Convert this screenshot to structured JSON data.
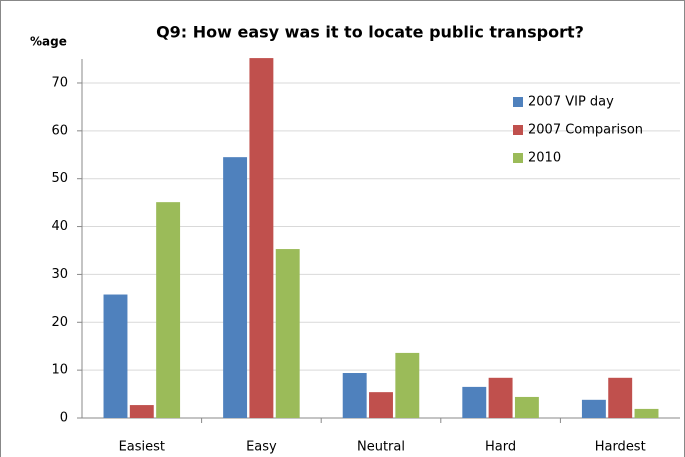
{
  "chart_data": {
    "type": "bar",
    "title": "Q9: How easy was it to locate public transport?",
    "y_label": "%age",
    "categories": [
      "Easiest",
      "Easy",
      "Neutral",
      "Hard",
      "Hardest"
    ],
    "series": [
      {
        "name": "2007 VIP day",
        "color": "#4f81bd",
        "values": [
          25.8,
          54.5,
          9.4,
          6.5,
          3.8
        ]
      },
      {
        "name": "2007 Comparison",
        "color": "#c0504d",
        "values": [
          2.7,
          75.2,
          5.4,
          8.4,
          8.4
        ]
      },
      {
        "name": "2010",
        "color": "#9bbb59",
        "values": [
          45.1,
          35.3,
          13.6,
          4.4,
          1.9
        ]
      }
    ],
    "ylim": [
      0,
      75
    ],
    "yticks": [
      0,
      10,
      20,
      30,
      40,
      50,
      60,
      70
    ],
    "grid": true,
    "legend": "upper right"
  }
}
